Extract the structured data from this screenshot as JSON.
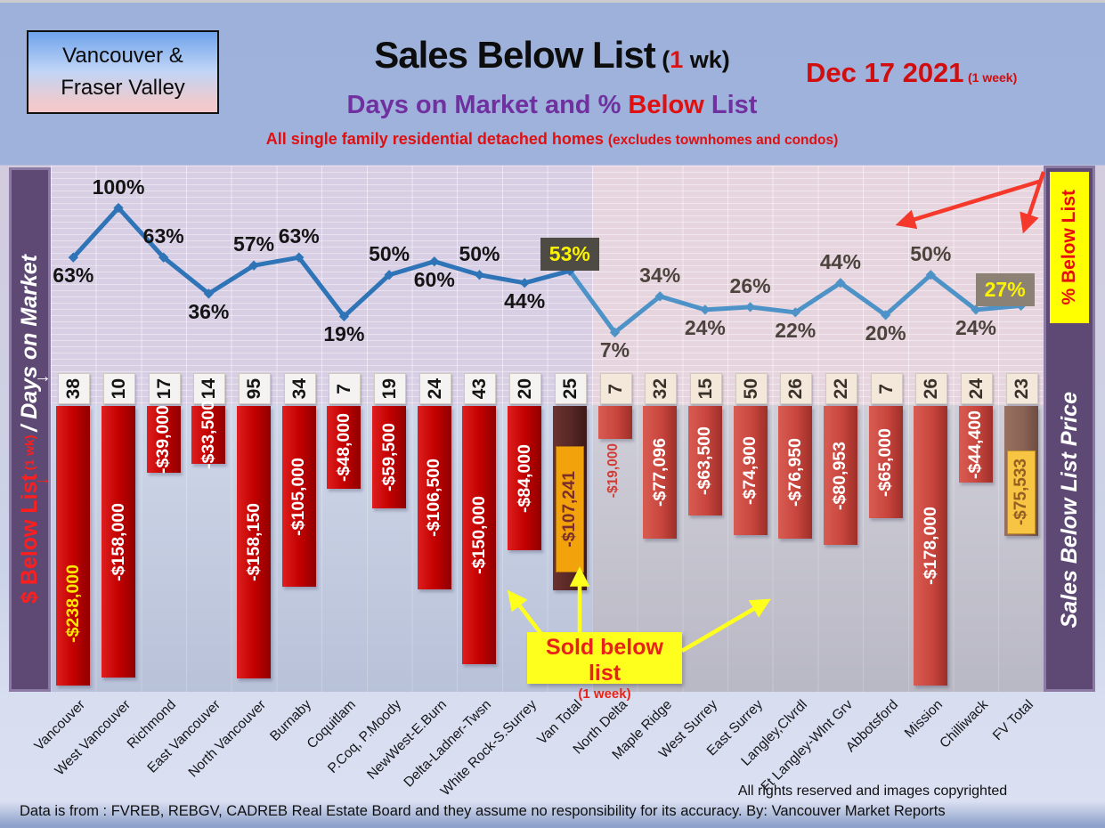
{
  "header": {
    "region_line1": "Vancouver &",
    "region_line2": "Fraser Valley",
    "title": "Sales Below List",
    "title_note_pre": " (",
    "title_note_red": "1",
    "title_note_post": " wk)",
    "date": "Dec 17  2021",
    "date_note": " (1 week)",
    "subtitle_purple": "Days on Market and % ",
    "subtitle_red": "Below",
    "subtitle_purple2": " List",
    "tagline": "All single family residential detached homes ",
    "tagline_note": "(excludes townhomes and condos)"
  },
  "left_axis": {
    "label_red": "$ Below List",
    "label_note": " (1 wk) ",
    "label_white": "/ Days on Market"
  },
  "right_axis": {
    "percent_label": "% Below List",
    "price_label": "Sales Below List Price"
  },
  "callout": {
    "line1": "Sold below list",
    "line2": "(1 week)"
  },
  "footer": {
    "rights": "All rights reserved and  images copyrighted",
    "disclaimer": "Data is from : FVREB, REBGV, CADREB Real Estate Board and they assume no responsibility for its accuracy. By: Vancouver Market Reports"
  },
  "colors": {
    "van_bar": "#C40000",
    "fv_bar": "#C8453D",
    "van_total_bar": "#562725",
    "fv_total_bar": "#8A6355",
    "van_total_tag": "#F2A30C",
    "fv_total_tag": "#F7C444",
    "line_van": "#2E74B6",
    "line_fv": "#4E93C8",
    "badge_van_bg": "#4E4B44",
    "badge_fv_bg": "#8B8275",
    "badge_text": "#FBF300",
    "callout_bg": "#FFFF1E",
    "callout_text": "#E82218"
  },
  "chart_data": {
    "type": "combo: line (% below list) + bar ($ below list) + label boxes (days on market)",
    "title": "Sales Below List (1 wk) — Days on Market and % Below List",
    "categories": [
      "Vancouver",
      "West Vancouver",
      "Richmond",
      "East Vancouver",
      "North Vancouver",
      "Burnaby",
      "Coquitlam",
      "P.Coq, P.Moody",
      "NewWest-E.Burn",
      "Delta-Ladner-Twsn",
      "White Rock-S.Surrey",
      "Van Total",
      "North Delta",
      "Maple Ridge",
      "West Surrey",
      "East Surrey",
      "Langley,Clvrdl",
      "Ft Langley-Wlnt Grv",
      "Abbotsford",
      "Mission",
      "Chilliwack",
      "FV Total"
    ],
    "series": [
      {
        "name": "% Below List",
        "type": "line",
        "unit": "%",
        "values": [
          63,
          100,
          63,
          36,
          57,
          63,
          19,
          50,
          60,
          50,
          44,
          53,
          7,
          34,
          24,
          26,
          22,
          44,
          20,
          50,
          24,
          27
        ]
      },
      {
        "name": "Days on Market",
        "type": "label-boxes",
        "values": [
          38,
          10,
          17,
          14,
          95,
          34,
          7,
          19,
          24,
          43,
          20,
          25,
          7,
          32,
          15,
          50,
          26,
          22,
          7,
          26,
          24,
          23
        ]
      },
      {
        "name": "$ Below List (1 wk)",
        "type": "bar",
        "unit": "CAD",
        "values": [
          -238000,
          -158000,
          -39000,
          -33500,
          -158150,
          -105000,
          -48000,
          -59500,
          -106500,
          -150000,
          -84000,
          -107241,
          -19000,
          -77096,
          -63500,
          -74900,
          -76950,
          -80953,
          -65000,
          -178000,
          -44400,
          -75533
        ],
        "display": [
          "-$238,000",
          "-$158,000",
          "-$39,000",
          "-$33,500",
          "-$158,150",
          "-$105,000",
          "-$48,000",
          "-$59,500",
          "-$106,500",
          "-$150,000",
          "-$84,000",
          "-$107,241",
          "-$19,000",
          "-$77,096",
          "-$63,500",
          "-$74,900",
          "-$76,950",
          "-$80,953",
          "-$65,000",
          "-$178,000",
          "-$44,400",
          "-$75,533"
        ]
      }
    ],
    "label_pos": [
      "below",
      "above",
      "above",
      "below",
      "above",
      "above",
      "below",
      "above",
      "below",
      "above",
      "below",
      "box",
      "below",
      "above",
      "below",
      "above",
      "below",
      "above",
      "below",
      "above",
      "below",
      "box"
    ],
    "value_label_style": [
      "yellow-low",
      "white",
      "white",
      "white",
      "white",
      "white",
      "white",
      "white",
      "white",
      "white",
      "white",
      "tag-van",
      "outside",
      "white",
      "white",
      "white",
      "white",
      "white",
      "white",
      "white",
      "white",
      "tag-fv"
    ],
    "region_split": {
      "vancouver_columns": 12,
      "fraser_valley_columns": 10
    },
    "highlights": [
      {
        "index": 11,
        "label": "53%"
      },
      {
        "index": 21,
        "label": "27%"
      }
    ],
    "line_axis_range": [
      0,
      110
    ],
    "grid": true,
    "legend_position": "none"
  }
}
